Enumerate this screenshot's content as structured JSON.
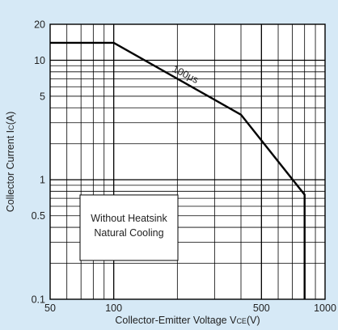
{
  "colors": {
    "background": "#d6e9f6",
    "plot": "#ffffff",
    "ink": "#000000"
  },
  "chart_data": {
    "type": "line",
    "title": "",
    "xlabel": "Collector-Emitter Voltage V",
    "xlabel_sub": "CE",
    "xlabel_unit": "(V)",
    "ylabel": "Collector Current I",
    "ylabel_sub": "C",
    "ylabel_unit": "(A)",
    "xscale": "log",
    "yscale": "log",
    "xlim": [
      50,
      1000
    ],
    "ylim": [
      0.1,
      20
    ],
    "xticks": [
      {
        "value": 50,
        "label": "50"
      },
      {
        "value": 100,
        "label": "100"
      },
      {
        "value": 500,
        "label": "500"
      },
      {
        "value": 1000,
        "label": "1000"
      }
    ],
    "yticks": [
      {
        "value": 0.1,
        "label": "0.1"
      },
      {
        "value": 0.5,
        "label": "0.5"
      },
      {
        "value": 1,
        "label": "1"
      },
      {
        "value": 5,
        "label": "5"
      },
      {
        "value": 10,
        "label": "10"
      },
      {
        "value": 20,
        "label": "20"
      }
    ],
    "grid": true,
    "series": [
      {
        "name": "",
        "x": [
          50,
          100,
          400,
          800,
          800
        ],
        "y": [
          14,
          14,
          3.5,
          0.75,
          0.1
        ]
      }
    ],
    "annotations": [
      {
        "text": "100μs",
        "x": 215,
        "y": 7.2
      }
    ],
    "legend_box": [
      "Without Heatsink",
      "Natural Cooling"
    ]
  }
}
